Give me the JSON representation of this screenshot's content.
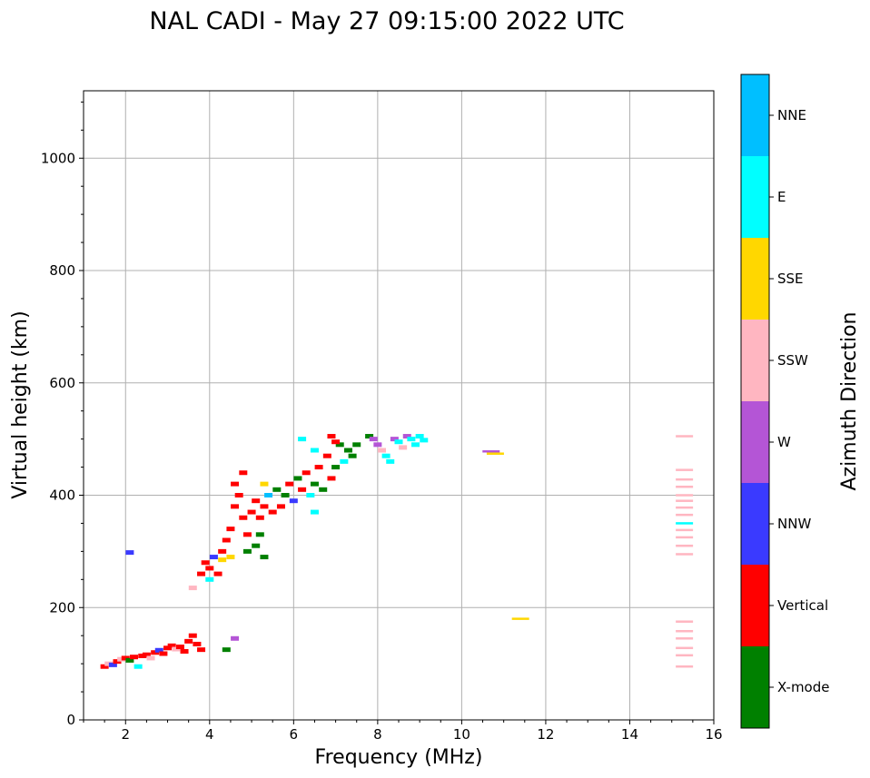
{
  "chart_data": {
    "type": "scatter",
    "title": "NAL CADI - May 27 09:15:00 2022 UTC",
    "xlabel": "Frequency (MHz)",
    "ylabel": "Virtual height (km)",
    "xlim": [
      1,
      16
    ],
    "ylim": [
      0,
      1120
    ],
    "xticks": [
      2,
      4,
      6,
      8,
      10,
      12,
      14,
      16
    ],
    "yticks": [
      0,
      200,
      400,
      600,
      800,
      1000
    ],
    "grid": true,
    "colorbar": {
      "label": "Azimuth Direction",
      "categories": [
        {
          "name": "X-mode",
          "color": "#008000"
        },
        {
          "name": "Vertical",
          "color": "#ff0000"
        },
        {
          "name": "NNW",
          "color": "#3a3aff"
        },
        {
          "name": "W",
          "color": "#b455d6"
        },
        {
          "name": "SSW",
          "color": "#ffb6c1"
        },
        {
          "name": "SSE",
          "color": "#ffd700"
        },
        {
          "name": "E",
          "color": "#00ffff"
        },
        {
          "name": "NNE",
          "color": "#00bfff"
        }
      ]
    },
    "points": [
      [
        1.5,
        95,
        1
      ],
      [
        1.6,
        100,
        4
      ],
      [
        1.7,
        98,
        2
      ],
      [
        1.8,
        104,
        1
      ],
      [
        1.9,
        108,
        4
      ],
      [
        2.0,
        110,
        1
      ],
      [
        2.1,
        106,
        0
      ],
      [
        2.2,
        112,
        1
      ],
      [
        2.3,
        95,
        6
      ],
      [
        2.4,
        114,
        1
      ],
      [
        2.5,
        116,
        1
      ],
      [
        2.6,
        110,
        4
      ],
      [
        2.7,
        120,
        1
      ],
      [
        2.8,
        124,
        2
      ],
      [
        2.9,
        118,
        1
      ],
      [
        3.0,
        128,
        1
      ],
      [
        3.1,
        132,
        1
      ],
      [
        3.2,
        126,
        4
      ],
      [
        3.3,
        130,
        1
      ],
      [
        3.4,
        122,
        1
      ],
      [
        3.5,
        140,
        1
      ],
      [
        3.6,
        150,
        1
      ],
      [
        3.7,
        135,
        1
      ],
      [
        3.8,
        125,
        1
      ],
      [
        4.4,
        125,
        0
      ],
      [
        4.6,
        145,
        3
      ],
      [
        2.1,
        298,
        2
      ],
      [
        3.6,
        235,
        4
      ],
      [
        3.8,
        260,
        1
      ],
      [
        3.9,
        280,
        1
      ],
      [
        4.0,
        270,
        1
      ],
      [
        4.0,
        250,
        6
      ],
      [
        4.1,
        290,
        2
      ],
      [
        4.2,
        260,
        1
      ],
      [
        4.3,
        300,
        1
      ],
      [
        4.3,
        285,
        5
      ],
      [
        4.4,
        320,
        1
      ],
      [
        4.5,
        340,
        1
      ],
      [
        4.5,
        290,
        5
      ],
      [
        4.6,
        380,
        1
      ],
      [
        4.6,
        420,
        1
      ],
      [
        4.7,
        400,
        1
      ],
      [
        4.8,
        440,
        1
      ],
      [
        4.8,
        360,
        1
      ],
      [
        4.9,
        300,
        0
      ],
      [
        4.9,
        330,
        1
      ],
      [
        5.0,
        370,
        1
      ],
      [
        5.1,
        310,
        0
      ],
      [
        5.1,
        390,
        1
      ],
      [
        5.2,
        360,
        1
      ],
      [
        5.2,
        330,
        0
      ],
      [
        5.3,
        380,
        1
      ],
      [
        5.3,
        420,
        5
      ],
      [
        5.4,
        400,
        7
      ],
      [
        5.5,
        370,
        1
      ],
      [
        5.6,
        410,
        0
      ],
      [
        5.7,
        380,
        1
      ],
      [
        5.8,
        400,
        0
      ],
      [
        5.9,
        420,
        1
      ],
      [
        6.0,
        390,
        2
      ],
      [
        6.1,
        430,
        0
      ],
      [
        6.2,
        410,
        1
      ],
      [
        6.3,
        440,
        1
      ],
      [
        6.4,
        400,
        6
      ],
      [
        6.5,
        420,
        0
      ],
      [
        6.6,
        450,
        1
      ],
      [
        6.7,
        410,
        0
      ],
      [
        6.8,
        470,
        1
      ],
      [
        6.9,
        430,
        1
      ],
      [
        7.0,
        450,
        0
      ],
      [
        7.1,
        490,
        0
      ],
      [
        7.2,
        460,
        6
      ],
      [
        7.3,
        480,
        0
      ],
      [
        6.5,
        370,
        6
      ],
      [
        5.3,
        290,
        0
      ],
      [
        6.2,
        500,
        6
      ],
      [
        6.5,
        480,
        6
      ],
      [
        6.9,
        505,
        1
      ],
      [
        7.0,
        495,
        1
      ],
      [
        7.4,
        470,
        0
      ],
      [
        7.5,
        490,
        0
      ],
      [
        7.8,
        505,
        0
      ],
      [
        7.9,
        500,
        3
      ],
      [
        8.0,
        490,
        3
      ],
      [
        8.1,
        480,
        4
      ],
      [
        8.2,
        470,
        6
      ],
      [
        8.3,
        460,
        6
      ],
      [
        8.4,
        500,
        3
      ],
      [
        8.5,
        495,
        6
      ],
      [
        8.6,
        485,
        4
      ],
      [
        8.7,
        505,
        3
      ],
      [
        8.8,
        500,
        6
      ],
      [
        8.9,
        490,
        6
      ],
      [
        9.0,
        505,
        6
      ],
      [
        9.1,
        498,
        6
      ],
      [
        10.7,
        478,
        3
      ],
      [
        10.8,
        474,
        5
      ],
      [
        11.4,
        180,
        5
      ],
      [
        15.3,
        505,
        4
      ],
      [
        15.3,
        445,
        4
      ],
      [
        15.3,
        428,
        4
      ],
      [
        15.3,
        415,
        4
      ],
      [
        15.3,
        400,
        4
      ],
      [
        15.3,
        390,
        4
      ],
      [
        15.3,
        378,
        4
      ],
      [
        15.3,
        365,
        4
      ],
      [
        15.3,
        350,
        6
      ],
      [
        15.3,
        338,
        4
      ],
      [
        15.3,
        325,
        4
      ],
      [
        15.3,
        310,
        4
      ],
      [
        15.3,
        295,
        4
      ],
      [
        15.3,
        175,
        4
      ],
      [
        15.3,
        158,
        4
      ],
      [
        15.3,
        145,
        4
      ],
      [
        15.3,
        128,
        4
      ],
      [
        15.3,
        115,
        4
      ],
      [
        15.3,
        95,
        4
      ]
    ]
  }
}
